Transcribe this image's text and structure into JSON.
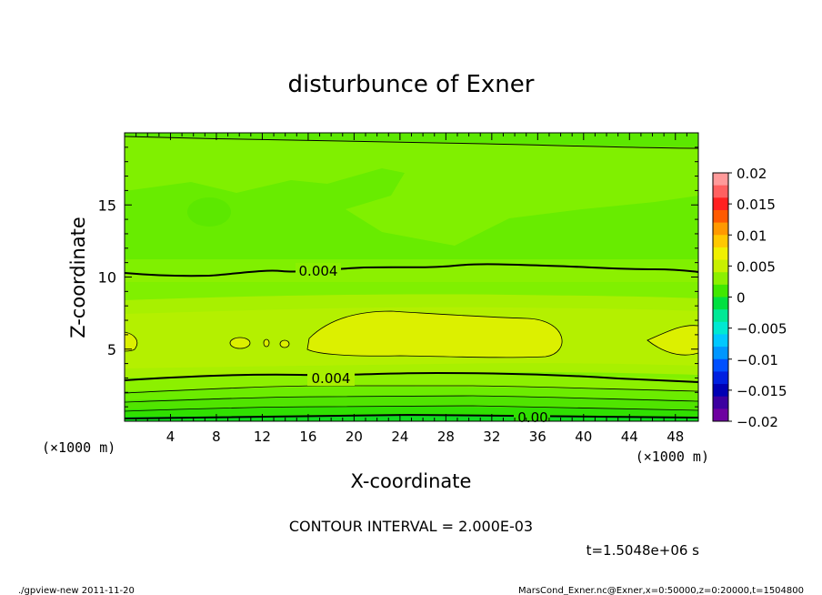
{
  "chart_data": {
    "type": "heatmap",
    "title": "disturbunce of Exner",
    "xlabel": "X-coordinate",
    "ylabel": "Z-coordinate",
    "x_unit_left": "(×1000 m)",
    "x_unit_right": "(×1000 m)",
    "xlim": [
      0,
      50
    ],
    "ylim": [
      0,
      20
    ],
    "x_ticks": [
      "4",
      "8",
      "12",
      "16",
      "20",
      "24",
      "28",
      "32",
      "36",
      "40",
      "44",
      "48"
    ],
    "y_ticks": [
      "5",
      "10",
      "15"
    ],
    "colorbar": {
      "labels": [
        "0.02",
        "0.015",
        "0.01",
        "0.005",
        "0",
        "−0.005",
        "−0.01",
        "−0.015",
        "−0.02"
      ],
      "colors": [
        "#ff9a9a",
        "#ff6060",
        "#ff2020",
        "#ff5a00",
        "#ff9900",
        "#ffc800",
        "#f0f000",
        "#c8f000",
        "#8cf000",
        "#40e800",
        "#00e040",
        "#00e896",
        "#00e8d2",
        "#00c8ff",
        "#0096ff",
        "#0050ff",
        "#0020e0",
        "#0000b4",
        "#3c00a0",
        "#6e00a0"
      ]
    },
    "contour_labels": [
      "0.004",
      "0.004",
      "0.00"
    ],
    "contour_interval": "CONTOUR INTERVAL = 2.000E-03",
    "time": "t=1.5048e+06 s"
  },
  "footer": {
    "left": "./gpview-new  2011-11-20",
    "right": "MarsCond_Exner.nc@Exner,x=0:50000,z=0:20000,t=1504800"
  }
}
